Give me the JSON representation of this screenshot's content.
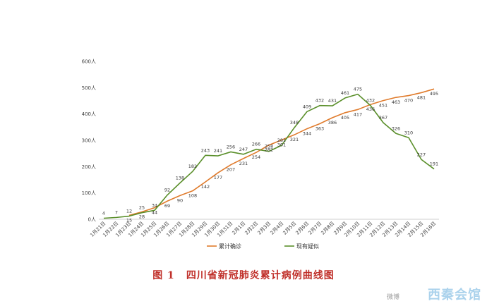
{
  "chart_data": {
    "type": "line",
    "title": "",
    "xlabel": "",
    "ylabel": "",
    "ylim": [
      0,
      600
    ],
    "yticks": [
      0,
      100,
      200,
      300,
      400,
      500,
      600
    ],
    "ytick_labels": [
      "0人",
      "100人",
      "200人",
      "300人",
      "400人",
      "500人",
      "600人"
    ],
    "categories": [
      "1月21日",
      "1月22日",
      "1月23日",
      "1月24日",
      "1月25日",
      "1月26日",
      "1月27日",
      "1月28日",
      "1月29日",
      "1月30日",
      "1月31日",
      "2月1日",
      "2月2日",
      "2月3日",
      "2月4日",
      "2月5日",
      "2月6日",
      "2月7日",
      "2月8日",
      "2月9日",
      "2月10日",
      "2月11日",
      "2月12日",
      "2月13日",
      "2月14日",
      "2月15日",
      "2月16日"
    ],
    "series": [
      {
        "name": "累计确诊",
        "color": "#e07b2c",
        "values": [
          null,
          null,
          15,
          28,
          44,
          69,
          90,
          108,
          142,
          177,
          207,
          231,
          254,
          282,
          301,
          321,
          344,
          363,
          386,
          405,
          417,
          436,
          451,
          463,
          470,
          481,
          495
        ],
        "labels": [
          null,
          null,
          "15",
          "28",
          "44",
          "69",
          "90",
          "108",
          "142",
          "177",
          "207",
          "231",
          "254",
          "282",
          "301",
          "321",
          "344",
          "363",
          "386",
          "405",
          "417",
          "436",
          "451",
          "463",
          "470",
          "481",
          "495"
        ]
      },
      {
        "name": "现有疑似",
        "color": "#5a8f2a",
        "values": [
          4,
          7,
          12,
          25,
          34,
          92,
          138,
          182,
          243,
          241,
          256,
          247,
          266,
          258,
          281,
          348,
          409,
          432,
          431,
          461,
          475,
          432,
          367,
          326,
          310,
          227,
          191
        ],
        "labels": [
          "4",
          "7",
          "12",
          "25",
          "34",
          "92",
          "138",
          "182",
          "243",
          "241",
          "256",
          "247",
          "266",
          "258",
          "281",
          "348",
          "409",
          "432",
          "431",
          "461",
          "475",
          "432",
          "367",
          "326",
          "310",
          "227",
          "191"
        ]
      }
    ],
    "grid": false,
    "legend_position": "bottom"
  },
  "caption": {
    "figure_number": "图 1",
    "text": "四川省新冠肺炎累计病例曲线图"
  },
  "watermark": {
    "text": "西秦会馆",
    "sub": "微博"
  }
}
